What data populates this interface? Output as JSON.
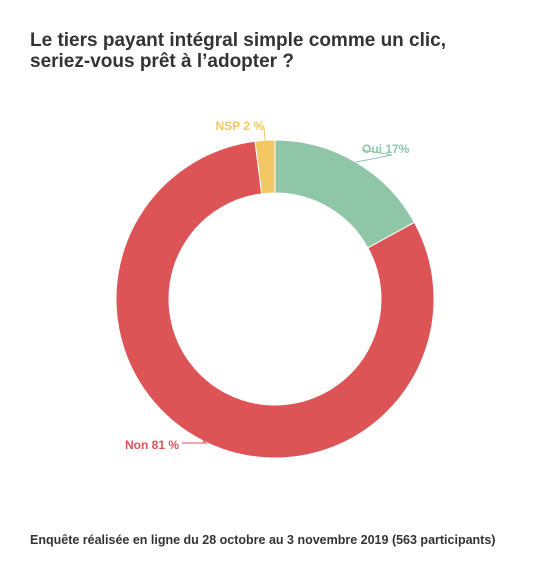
{
  "title_line1": "Le tiers payant intégral simple comme un clic,",
  "title_line2": "seriez-vous prêt à l’adopter ?",
  "footer": "Enquête réalisée en ligne du 28 octobre au 3 novembre 2019 (563 participants)",
  "chart_data": {
    "type": "pie",
    "donut": true,
    "title": "Le tiers payant intégral simple comme un clic, seriez-vous prêt à l’adopter ?",
    "slices": [
      {
        "label": "Oui 17%",
        "category": "Oui",
        "value": 17,
        "color": "#8fc6a8"
      },
      {
        "label": "Non 81 %",
        "category": "Non",
        "value": 81,
        "color": "#dd5457"
      },
      {
        "label": "NSP 2 %",
        "category": "NSP",
        "value": 2,
        "color": "#f2c864"
      }
    ],
    "legend": "none"
  }
}
